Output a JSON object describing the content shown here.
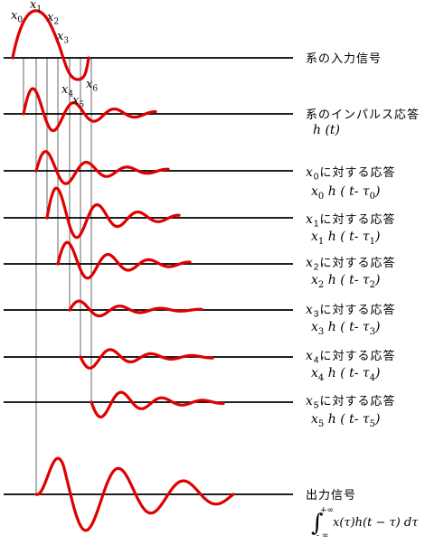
{
  "labels": {
    "input_signal": "系の入力信号",
    "impulse_response": "系のインパルス応答",
    "impulse_func": "h (t)",
    "output_signal": "出力信号"
  },
  "sample_points": [
    {
      "var": "x",
      "index": "0"
    },
    {
      "var": "x",
      "index": "1"
    },
    {
      "var": "x",
      "index": "2"
    },
    {
      "var": "x",
      "index": "3"
    },
    {
      "var": "x",
      "index": "4"
    },
    {
      "var": "x",
      "index": "5"
    },
    {
      "var": "x",
      "index": "6"
    }
  ],
  "responses": [
    {
      "var": "x",
      "index": "0",
      "suffix": "に対する応答",
      "coef": "x",
      "func": "h ( t- τ",
      "tau_index": "0",
      "close": ")"
    },
    {
      "var": "x",
      "index": "1",
      "suffix": "に対する応答",
      "coef": "x",
      "func": "h ( t- τ",
      "tau_index": "1",
      "close": ")"
    },
    {
      "var": "x",
      "index": "2",
      "suffix": "に対する応答",
      "coef": "x",
      "func": "h ( t- τ",
      "tau_index": "2",
      "close": ")"
    },
    {
      "var": "x",
      "index": "3",
      "suffix": "に対する応答",
      "coef": "x",
      "func": "h ( t- τ",
      "tau_index": "3",
      "close": ")"
    },
    {
      "var": "x",
      "index": "4",
      "suffix": "に対する応答",
      "coef": "x",
      "func": "h ( t- τ",
      "tau_index": "4",
      "close": ")"
    },
    {
      "var": "x",
      "index": "5",
      "suffix": "に対する応答",
      "coef": "x",
      "func": "h ( t- τ",
      "tau_index": "5",
      "close": ")"
    }
  ],
  "output_formula": {
    "integral": "∫",
    "upper": "+∞",
    "lower": "- ∞",
    "body": "x(τ)h(t − τ) dτ"
  },
  "colors": {
    "wave": "#e00000",
    "line": "#000000"
  }
}
